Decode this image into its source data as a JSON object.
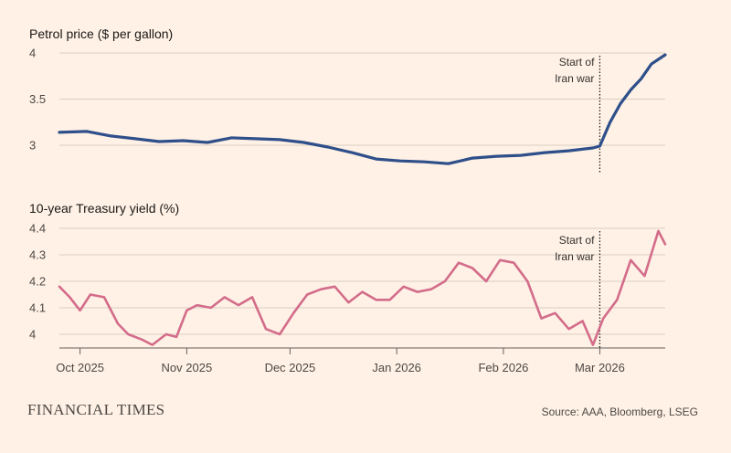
{
  "colors": {
    "background": "#fff1e5",
    "petrol": "#2e4f8a",
    "yield": "#d36c8a",
    "grid": "#d9cdc3",
    "axis": "#66605c"
  },
  "footer": {
    "brand": "FINANCIAL TIMES",
    "source": "Source: AAA, Bloomberg, LSEG"
  },
  "chart_data": [
    {
      "type": "line",
      "title": "Petrol price ($ per gallon)",
      "ylim": [
        2.72,
        4.0
      ],
      "yticks": [
        4,
        3.5,
        3
      ],
      "ytick_labels": [
        "4",
        "3.5",
        "3"
      ],
      "grid": true,
      "x_dates": [
        "2025-09-25",
        "2025-10-03",
        "2025-10-10",
        "2025-10-17",
        "2025-10-24",
        "2025-10-31",
        "2025-11-07",
        "2025-11-14",
        "2025-11-21",
        "2025-11-28",
        "2025-12-05",
        "2025-12-12",
        "2025-12-19",
        "2025-12-26",
        "2026-01-02",
        "2026-01-09",
        "2026-01-16",
        "2026-01-23",
        "2026-01-30",
        "2026-02-06",
        "2026-02-13",
        "2026-02-20",
        "2026-02-27",
        "2026-03-01",
        "2026-03-04",
        "2026-03-07",
        "2026-03-10",
        "2026-03-13",
        "2026-03-16",
        "2026-03-20"
      ],
      "series": [
        {
          "values": [
            3.14,
            3.15,
            3.1,
            3.07,
            3.04,
            3.05,
            3.03,
            3.08,
            3.07,
            3.06,
            3.03,
            2.98,
            2.92,
            2.85,
            2.83,
            2.82,
            2.8,
            2.86,
            2.88,
            2.89,
            2.92,
            2.94,
            2.97,
            2.99,
            3.25,
            3.45,
            3.6,
            3.72,
            3.88,
            3.98
          ]
        }
      ],
      "annotation": {
        "date": "2026-03-01",
        "lines": [
          "Start of",
          "Iran war"
        ]
      }
    },
    {
      "type": "line",
      "title": "10-year Treasury yield (%)",
      "ylim": [
        3.95,
        4.4
      ],
      "yticks": [
        4.4,
        4.3,
        4.2,
        4.1,
        4
      ],
      "ytick_labels": [
        "4.4",
        "4.3",
        "4.2",
        "4.1",
        "4"
      ],
      "grid": true,
      "x_dates": [
        "2025-09-25",
        "2025-09-28",
        "2025-10-01",
        "2025-10-04",
        "2025-10-08",
        "2025-10-12",
        "2025-10-15",
        "2025-10-19",
        "2025-10-22",
        "2025-10-26",
        "2025-10-29",
        "2025-11-01",
        "2025-11-04",
        "2025-11-08",
        "2025-11-12",
        "2025-11-16",
        "2025-11-20",
        "2025-11-24",
        "2025-11-28",
        "2025-12-02",
        "2025-12-06",
        "2025-12-10",
        "2025-12-14",
        "2025-12-18",
        "2025-12-22",
        "2025-12-26",
        "2025-12-30",
        "2026-01-03",
        "2026-01-07",
        "2026-01-11",
        "2026-01-15",
        "2026-01-19",
        "2026-01-23",
        "2026-01-27",
        "2026-01-31",
        "2026-02-04",
        "2026-02-08",
        "2026-02-12",
        "2026-02-16",
        "2026-02-20",
        "2026-02-24",
        "2026-02-27",
        "2026-03-02",
        "2026-03-06",
        "2026-03-10",
        "2026-03-14",
        "2026-03-18",
        "2026-03-20"
      ],
      "series": [
        {
          "values": [
            4.18,
            4.14,
            4.09,
            4.15,
            4.14,
            4.04,
            4.0,
            3.98,
            3.96,
            4.0,
            3.99,
            4.09,
            4.11,
            4.1,
            4.14,
            4.11,
            4.14,
            4.02,
            4.0,
            4.08,
            4.15,
            4.17,
            4.18,
            4.12,
            4.16,
            4.13,
            4.13,
            4.18,
            4.16,
            4.17,
            4.2,
            4.27,
            4.25,
            4.2,
            4.28,
            4.27,
            4.2,
            4.06,
            4.08,
            4.02,
            4.05,
            3.96,
            4.06,
            4.13,
            4.28,
            4.22,
            4.39,
            4.34
          ]
        }
      ],
      "annotation": {
        "date": "2026-03-01",
        "lines": [
          "Start of",
          "Iran war"
        ]
      }
    }
  ],
  "x_axis": {
    "start_date": "2025-09-25",
    "end_date": "2026-03-20",
    "ticks": [
      {
        "date": "2025-10-01",
        "label": "Oct 2025"
      },
      {
        "date": "2025-11-01",
        "label": "Nov 2025"
      },
      {
        "date": "2025-12-01",
        "label": "Dec 2025"
      },
      {
        "date": "2026-01-01",
        "label": "Jan 2026"
      },
      {
        "date": "2026-02-01",
        "label": "Feb 2026"
      },
      {
        "date": "2026-03-01",
        "label": "Mar 2026"
      }
    ]
  }
}
